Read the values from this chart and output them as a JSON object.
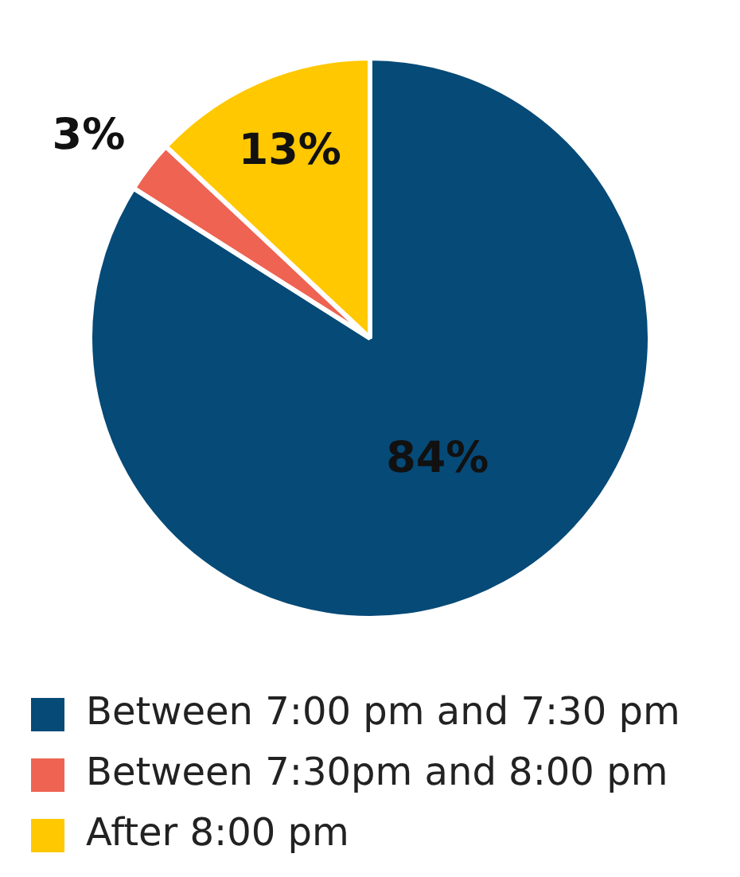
{
  "chart_data": {
    "type": "pie",
    "categories": [
      "Between 7:00 pm and 7:30 pm",
      "Between 7:30pm and 8:00 pm",
      "After 8:00 pm"
    ],
    "values": [
      84,
      3,
      13
    ],
    "colors": [
      "#064a77",
      "#ee6352",
      "#ffc800"
    ],
    "value_labels": [
      "84%",
      "3%",
      "13%"
    ],
    "legend": "bottom"
  }
}
